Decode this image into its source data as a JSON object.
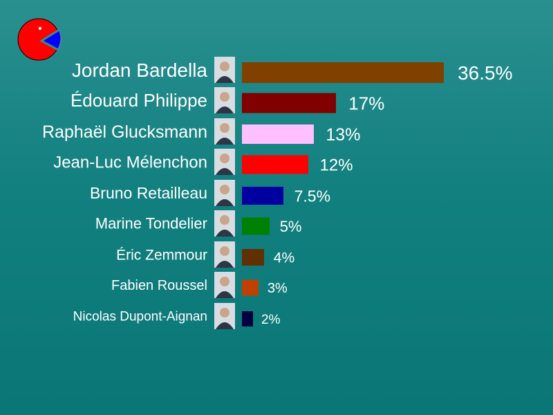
{
  "logo": {
    "icon": "pie-pacman-icon",
    "colors": [
      "#ff0000",
      "#0000ff"
    ]
  },
  "chart_data": {
    "type": "bar",
    "orientation": "horizontal",
    "categories": [
      "Jordan Bardella",
      "Édouard Philippe",
      "Raphaël Glucksmann",
      "Jean-Luc Mélenchon",
      "Bruno Retailleau",
      "Marine Tondelier",
      "Éric Zemmour",
      "Fabien Roussel",
      "Nicolas Dupont-Aignan"
    ],
    "values": [
      36.5,
      17,
      13,
      12,
      7.5,
      5,
      4,
      3,
      2
    ],
    "value_labels": [
      "36.5%",
      "17%",
      "13%",
      "12%",
      "7.5%",
      "5%",
      "4%",
      "3%",
      "2%"
    ],
    "colors": [
      "#7f4000",
      "#800000",
      "#ffc0ff",
      "#ff0000",
      "#0000a0",
      "#008000",
      "#603000",
      "#c04000",
      "#000040"
    ],
    "unit": "%",
    "grid": false,
    "legend": "none"
  }
}
